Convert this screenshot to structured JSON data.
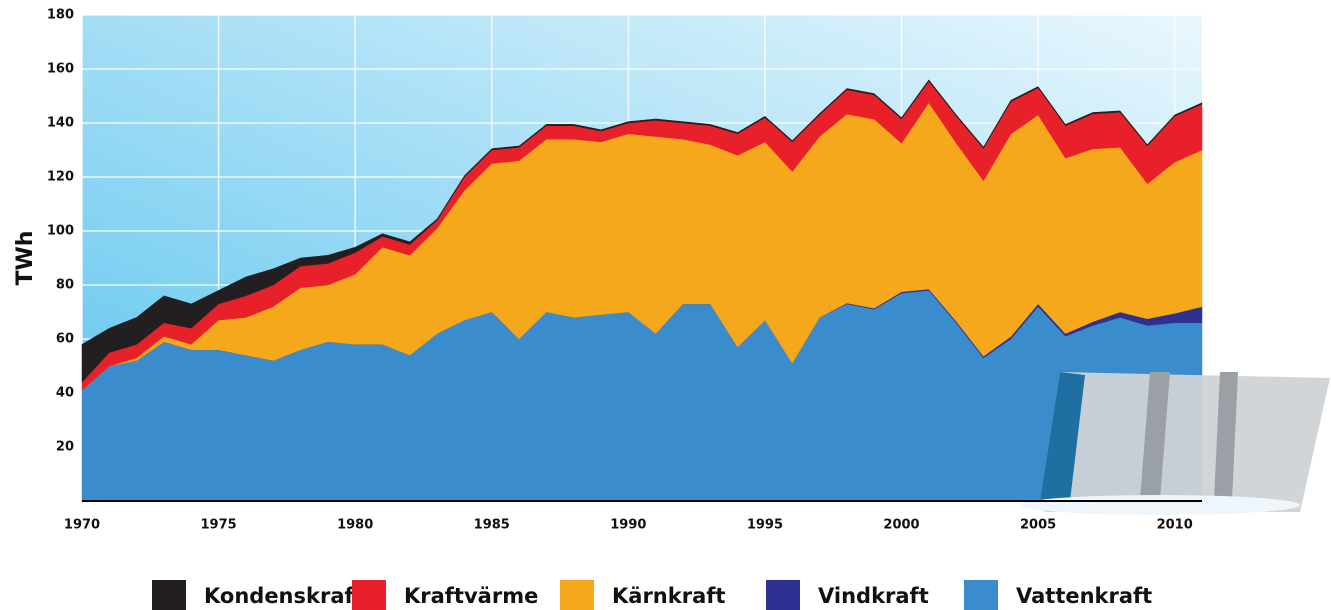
{
  "chart_data": {
    "type": "stacked_area",
    "y_label": "TWh",
    "x": [
      1970,
      1971,
      1972,
      1973,
      1974,
      1975,
      1976,
      1977,
      1978,
      1979,
      1980,
      1981,
      1982,
      1983,
      1984,
      1985,
      1986,
      1987,
      1988,
      1989,
      1990,
      1991,
      1992,
      1993,
      1994,
      1995,
      1996,
      1997,
      1998,
      1999,
      2000,
      2001,
      2002,
      2003,
      2004,
      2005,
      2006,
      2007,
      2008,
      2009,
      2010,
      2011
    ],
    "xlim": [
      1970,
      2011
    ],
    "xticks": [
      1970,
      1975,
      1980,
      1985,
      1990,
      1995,
      2000,
      2005,
      2010
    ],
    "ylim": [
      0,
      180
    ],
    "yticks": [
      20,
      40,
      60,
      80,
      100,
      120,
      140,
      160,
      180
    ],
    "grid": true,
    "series": [
      {
        "name": "Kondenskraft",
        "color": "#231f20",
        "values": [
          14,
          9,
          10,
          10,
          9,
          5,
          7,
          6,
          3,
          3,
          2,
          1,
          1,
          0.5,
          0.5,
          0.5,
          0.5,
          0.5,
          0.5,
          0.5,
          0.5,
          0.5,
          0.5,
          0.5,
          0.5,
          0.5,
          0.5,
          0.5,
          0.5,
          0.5,
          0.5,
          0.5,
          0.5,
          0.5,
          0.5,
          0.5,
          0.5,
          0.5,
          0.5,
          0.5,
          0.5,
          0.5
        ]
      },
      {
        "name": "Kraftvärme",
        "color": "#e8202a",
        "values": [
          3,
          5,
          5,
          5,
          6,
          6,
          8,
          8,
          8,
          8,
          8,
          4,
          4,
          3,
          5,
          5,
          5,
          5,
          5,
          4,
          4,
          6,
          6,
          7,
          8,
          9,
          11,
          8,
          9,
          9,
          9,
          8,
          10,
          12,
          12,
          10,
          12,
          13,
          13,
          14,
          17,
          17
        ]
      },
      {
        "name": "Kärnkraft",
        "color": "#f5a81c",
        "values": [
          0,
          0,
          1,
          2,
          2,
          11,
          14,
          20,
          23,
          21,
          26,
          36,
          37,
          39,
          48,
          55,
          66,
          64,
          66,
          64,
          66,
          73,
          61,
          59,
          71,
          66,
          71,
          67,
          70,
          70,
          55,
          69,
          66,
          65,
          75,
          70,
          65,
          64,
          61,
          50,
          56,
          58
        ]
      },
      {
        "name": "Vindkraft",
        "color": "#2e3192",
        "values": [
          0,
          0,
          0,
          0,
          0,
          0,
          0,
          0,
          0,
          0,
          0,
          0,
          0,
          0,
          0,
          0,
          0,
          0,
          0,
          0,
          0,
          0,
          0,
          0,
          0,
          0,
          0,
          0,
          0.3,
          0.4,
          0.5,
          0.5,
          0.6,
          0.6,
          0.9,
          1,
          1,
          1.4,
          2,
          2.5,
          3.5,
          6
        ]
      },
      {
        "name": "Vattenkraft",
        "color": "#3a8ccc",
        "values": [
          41,
          50,
          52,
          59,
          56,
          56,
          54,
          52,
          56,
          59,
          58,
          58,
          54,
          62,
          67,
          70,
          60,
          70,
          68,
          69,
          70,
          62,
          73,
          73,
          57,
          67,
          51,
          68,
          73,
          71,
          77,
          78,
          66,
          53,
          60,
          72,
          61,
          65,
          68,
          65,
          66,
          66
        ]
      }
    ]
  }
}
